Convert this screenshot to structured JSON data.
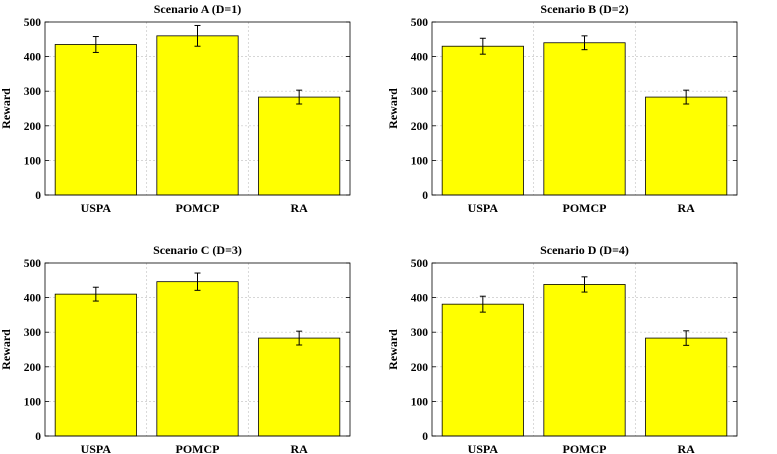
{
  "figure": {
    "background": "#ffffff"
  },
  "style": {
    "bar_color": "#ffff00",
    "bar_stroke": "#000000",
    "grid_color": "#c8c8c8",
    "axis_color": "#000000"
  },
  "chart_data": [
    {
      "type": "bar",
      "title": "Scenario A (D=1)",
      "categories": [
        "USPA",
        "POMCP",
        "RA"
      ],
      "values": [
        435,
        460,
        283
      ],
      "errors": [
        23,
        30,
        20
      ],
      "xlabel": "",
      "ylabel": "Reward",
      "ylim": [
        0,
        500
      ],
      "yticks": [
        0,
        100,
        200,
        300,
        400,
        500
      ],
      "grid": true
    },
    {
      "type": "bar",
      "title": "Scenario B (D=2)",
      "categories": [
        "USPA",
        "POMCP",
        "RA"
      ],
      "values": [
        430,
        440,
        283
      ],
      "errors": [
        23,
        20,
        20
      ],
      "xlabel": "",
      "ylabel": "Reward",
      "ylim": [
        0,
        500
      ],
      "yticks": [
        0,
        100,
        200,
        300,
        400,
        500
      ],
      "grid": true
    },
    {
      "type": "bar",
      "title": "Scenario C (D=3)",
      "categories": [
        "USPA",
        "POMCP",
        "RA"
      ],
      "values": [
        410,
        446,
        283
      ],
      "errors": [
        20,
        25,
        20
      ],
      "xlabel": "",
      "ylabel": "Reward",
      "ylim": [
        0,
        500
      ],
      "yticks": [
        0,
        100,
        200,
        300,
        400,
        500
      ],
      "grid": true
    },
    {
      "type": "bar",
      "title": "Scenario D (D=4)",
      "categories": [
        "USPA",
        "POMCP",
        "RA"
      ],
      "values": [
        381,
        438,
        283
      ],
      "errors": [
        23,
        22,
        21
      ],
      "xlabel": "",
      "ylabel": "Reward",
      "ylim": [
        0,
        500
      ],
      "yticks": [
        0,
        100,
        200,
        300,
        400,
        500
      ],
      "grid": true
    }
  ]
}
